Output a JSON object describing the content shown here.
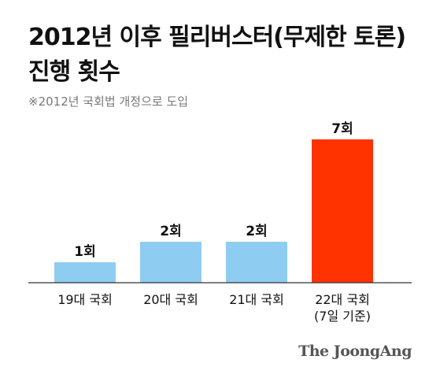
{
  "header": {
    "title_line1": "2012년 이후 필리버스터(무제한 토론)",
    "title_line2": "진행 횟수",
    "note": "※2012년 국회법 개정으로 도입"
  },
  "branding": {
    "logo": "The JoongAng"
  },
  "colors": {
    "default_bar": "#8ECDF1",
    "highlight_bar": "#FF3300",
    "baseline": "#333333",
    "text": "#111111"
  },
  "chart_data": {
    "type": "bar",
    "title": "2012년 이후 필리버스터(무제한 토론) 진행 횟수",
    "categories": [
      "19대 국회",
      "20대 국회",
      "21대 국회",
      "22대 국회"
    ],
    "category_notes": [
      "",
      "",
      "",
      "(7일 기준)"
    ],
    "values": [
      1,
      2,
      2,
      7
    ],
    "value_labels": [
      "1회",
      "2회",
      "2회",
      "7회"
    ],
    "highlight_index": 3,
    "ylim": [
      0,
      7
    ],
    "grid": false,
    "legend": "none"
  }
}
